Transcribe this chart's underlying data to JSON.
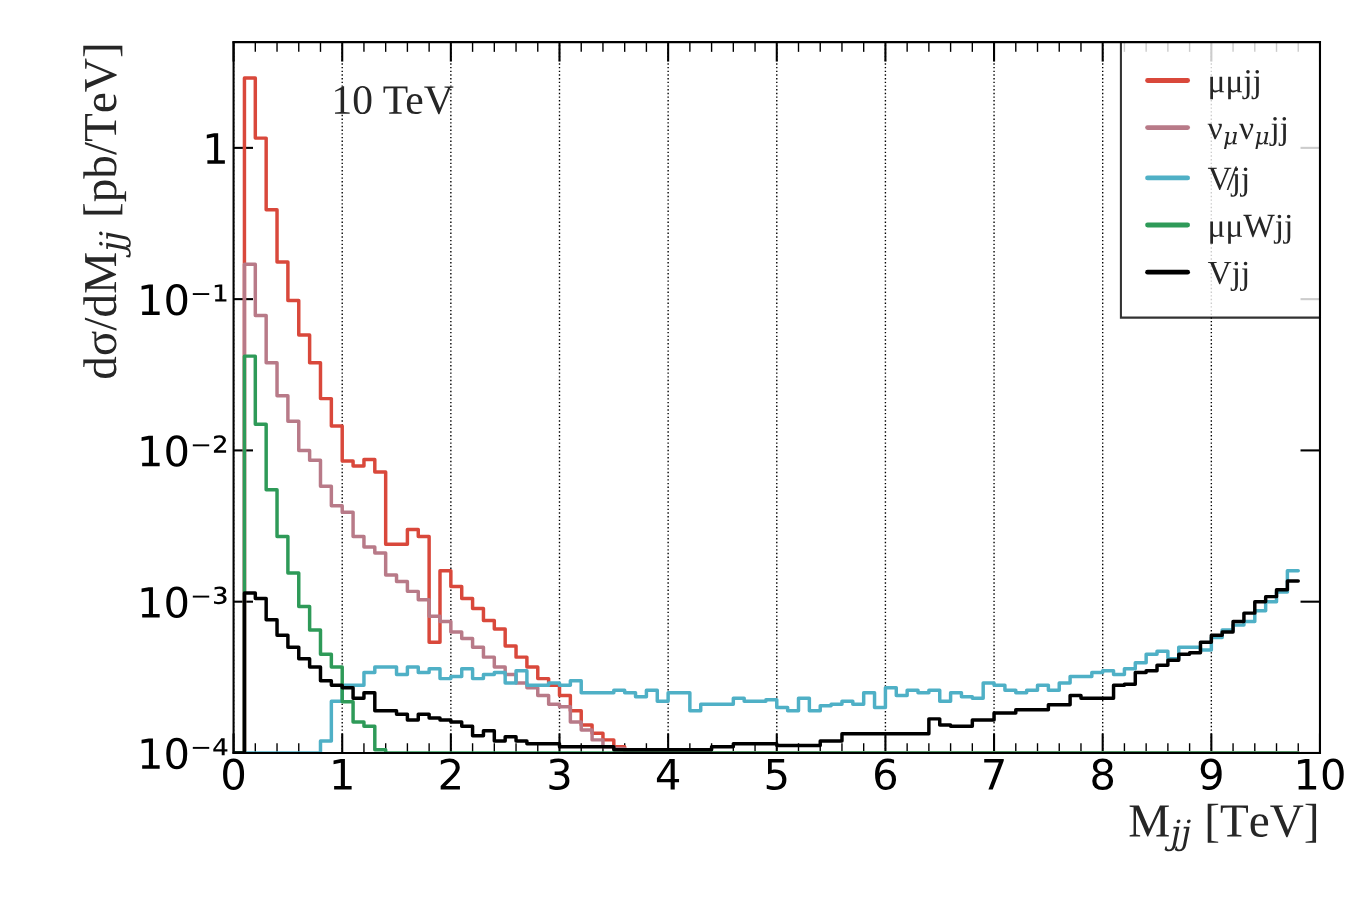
{
  "chart_data": {
    "type": "histogram",
    "xlabel": "M$_{jj}$ [TeV]",
    "ylabel": "dσ/dM$_{jj}$ [pb/TeV]",
    "annotations": [
      "10 TeV"
    ],
    "bins": [
      0.0,
      0.1,
      0.2,
      0.3,
      0.4,
      0.5,
      0.6,
      0.7,
      0.8,
      0.9,
      1.0,
      1.1,
      1.2,
      1.3,
      1.4,
      1.5,
      1.6,
      1.7,
      1.8,
      1.9,
      2.0,
      2.1,
      2.2,
      2.3,
      2.4,
      2.5,
      2.6,
      2.7,
      2.8,
      2.9,
      3.0,
      3.1,
      3.2,
      3.3,
      3.4,
      3.5,
      3.6,
      3.7,
      3.8,
      3.9,
      4.0,
      4.1,
      4.2,
      4.3,
      4.4,
      4.5,
      4.6,
      4.7,
      4.8,
      4.9,
      5.0,
      5.1,
      5.2,
      5.3,
      5.4,
      5.5,
      5.6,
      5.7,
      5.8,
      5.9,
      6.0,
      6.1,
      6.2,
      6.3,
      6.4,
      6.5,
      6.6,
      6.7,
      6.8,
      6.9,
      7.0,
      7.1,
      7.2,
      7.3,
      7.4,
      7.5,
      7.6,
      7.7,
      7.8,
      7.9,
      8.0,
      8.1,
      8.2,
      8.3,
      8.4,
      8.5,
      8.6,
      8.7,
      8.8,
      8.9,
      9.0,
      9.1,
      9.2,
      9.3,
      9.4,
      9.5,
      9.6,
      9.7,
      9.8
    ],
    "series": [
      {
        "name": "μμjj",
        "color": "#d9483b",
        "values": [
          0.0001,
          2.9,
          1.16,
          0.39,
          0.176,
          0.098,
          0.058,
          0.038,
          0.022,
          0.0145,
          0.0085,
          0.0079,
          0.0087,
          0.0072,
          0.0024,
          0.0024,
          0.003,
          0.0027,
          0.00054,
          0.0016,
          0.00126,
          0.00105,
          0.0009,
          0.00075,
          0.00066,
          0.00051,
          0.00043,
          0.00037,
          0.00031,
          0.00028,
          0.00024,
          0.00019,
          0.000153,
          0.000135,
          0.000122,
          0.00011,
          0.000105,
          0.000105,
          0.000103,
          0.0001,
          0.0001,
          0.0001,
          0.0001,
          0.0001,
          0.0001,
          0.0001,
          0.0001,
          0.0001,
          0.0001,
          0.0001,
          0.0001,
          0.0001,
          0.0001,
          0.0001,
          0.0001,
          0.0001,
          0.0001,
          0.0001,
          0.0001,
          0.0001,
          0.0001,
          0.0001,
          0.0001,
          0.0001,
          0.0001,
          0.0001,
          0.0001,
          0.0001,
          0.0001,
          0.0001,
          0.0001,
          0.0001,
          0.0001,
          0.0001,
          0.0001,
          0.0001,
          0.0001,
          0.0001,
          0.0001,
          0.0001,
          0.0001,
          0.0001,
          0.0001,
          0.0001,
          0.0001,
          0.0001,
          0.0001,
          0.0001,
          0.0001,
          0.0001,
          0.0001,
          0.0001,
          0.0001,
          0.0001,
          0.0001,
          0.0001,
          0.0001,
          0.0001
        ]
      },
      {
        "name": "ν$_{μ}$ν$_{μ}$jj",
        "color": "#b87a88",
        "values": [
          0.0001,
          0.17,
          0.078,
          0.038,
          0.023,
          0.0156,
          0.01,
          0.0086,
          0.0058,
          0.0043,
          0.0039,
          0.0027,
          0.0023,
          0.0021,
          0.0015,
          0.00136,
          0.00117,
          0.00103,
          0.0008,
          0.00074,
          0.00063,
          0.00057,
          0.0005,
          0.00043,
          0.00037,
          0.00033,
          0.00029,
          0.00027,
          0.00024,
          0.00021,
          0.000202,
          0.00016,
          0.000142,
          0.000122,
          0.00011,
          0.000107,
          0.000103,
          0.0001,
          0.0001,
          0.0001,
          0.0001,
          0.0001,
          0.0001,
          0.0001,
          0.0001,
          0.0001,
          0.0001,
          0.0001,
          0.0001,
          0.0001,
          0.0001,
          0.0001,
          0.0001,
          0.0001,
          0.0001,
          0.0001,
          0.0001,
          0.0001,
          0.0001,
          0.0001,
          0.0001,
          0.0001,
          0.0001,
          0.0001,
          0.0001,
          0.0001,
          0.0001,
          0.0001,
          0.0001,
          0.0001,
          0.0001,
          0.0001,
          0.0001,
          0.0001,
          0.0001,
          0.0001,
          0.0001,
          0.0001,
          0.0001,
          0.0001,
          0.0001,
          0.0001,
          0.0001,
          0.0001,
          0.0001,
          0.0001,
          0.0001,
          0.0001,
          0.0001,
          0.0001,
          0.0001,
          0.0001,
          0.0001,
          0.0001,
          0.0001,
          0.0001,
          0.0001,
          0.0001
        ]
      },
      {
        "name": "V̸jj",
        "color": "#4fb0c6",
        "values": [
          0.0001,
          0.0001,
          0.0001,
          0.0001,
          0.0001,
          0.0001,
          0.0001,
          0.0001,
          0.00012,
          0.00022,
          0.00028,
          0.00028,
          0.00034,
          0.00037,
          0.00037,
          0.00033,
          0.00037,
          0.00034,
          0.00036,
          0.00031,
          0.00032,
          0.00036,
          0.00031,
          0.00033,
          0.00034,
          0.00029,
          0.00035,
          0.00028,
          0.00028,
          0.00029,
          0.00028,
          0.0003,
          0.00025,
          0.00025,
          0.00025,
          0.00026,
          0.00025,
          0.000235,
          0.00026,
          0.00022,
          0.00025,
          0.00025,
          0.00019,
          0.00021,
          0.00021,
          0.00021,
          0.00023,
          0.00022,
          0.00022,
          0.000225,
          0.0002,
          0.00019,
          0.00023,
          0.00019,
          0.000205,
          0.00021,
          0.00022,
          0.00021,
          0.00025,
          0.0002,
          0.00027,
          0.00024,
          0.00026,
          0.00025,
          0.00026,
          0.00022,
          0.00025,
          0.000235,
          0.00023,
          0.00029,
          0.00028,
          0.00026,
          0.00025,
          0.00026,
          0.00028,
          0.00026,
          0.00029,
          0.00032,
          0.00032,
          0.00034,
          0.00035,
          0.00033,
          0.00036,
          0.000395,
          0.00045,
          0.00047,
          0.00042,
          0.0005,
          0.0005,
          0.00048,
          0.00058,
          0.00065,
          0.0007,
          0.00074,
          0.00087,
          0.001,
          0.00116,
          0.0016
        ]
      },
      {
        "name": "μμWjj",
        "color": "#2e9a58",
        "values": [
          0.0001,
          0.042,
          0.0149,
          0.0055,
          0.0027,
          0.00155,
          0.00093,
          0.00065,
          0.00045,
          0.00037,
          0.000218,
          0.00016,
          0.00015,
          0.000105,
          0.0001,
          0.0001,
          0.0001,
          0.0001,
          0.0001,
          0.0001,
          0.0001,
          0.0001,
          0.0001,
          0.0001,
          0.0001,
          0.0001,
          0.0001,
          0.0001,
          0.0001,
          0.0001,
          0.0001,
          0.0001,
          0.0001,
          0.0001,
          0.0001,
          0.0001,
          0.0001,
          0.0001,
          0.0001,
          0.0001,
          0.0001,
          0.0001,
          0.0001,
          0.0001,
          0.0001,
          0.0001,
          0.0001,
          0.0001,
          0.0001,
          0.0001,
          0.0001,
          0.0001,
          0.0001,
          0.0001,
          0.0001,
          0.0001,
          0.0001,
          0.0001,
          0.0001,
          0.0001,
          0.0001,
          0.0001,
          0.0001,
          0.0001,
          0.0001,
          0.0001,
          0.0001,
          0.0001,
          0.0001,
          0.0001,
          0.0001,
          0.0001,
          0.0001,
          0.0001,
          0.0001,
          0.0001,
          0.0001,
          0.0001,
          0.0001,
          0.0001,
          0.0001,
          0.0001,
          0.0001,
          0.0001,
          0.0001,
          0.0001,
          0.0001,
          0.0001,
          0.0001,
          0.0001,
          0.0001,
          0.0001,
          0.0001,
          0.0001,
          0.0001,
          0.0001,
          0.0001,
          0.0001
        ]
      },
      {
        "name": "Vjj",
        "color": "#000000",
        "values": [
          0.0001,
          0.00114,
          0.00105,
          0.00076,
          0.0006,
          0.0005,
          0.00042,
          0.00037,
          0.0003,
          0.00028,
          0.00027,
          0.00023,
          0.00025,
          0.00019,
          0.00019,
          0.00018,
          0.000165,
          0.00018,
          0.00017,
          0.000165,
          0.00016,
          0.00015,
          0.00013,
          0.00014,
          0.00012,
          0.000128,
          0.00012,
          0.000115,
          0.000115,
          0.000115,
          0.00011,
          0.00011,
          0.00011,
          0.00011,
          0.00011,
          0.000105,
          0.000105,
          0.000105,
          0.000105,
          0.000105,
          0.000105,
          0.000105,
          0.000105,
          0.000105,
          0.00011,
          0.00011,
          0.000115,
          0.000115,
          0.000115,
          0.000115,
          0.000112,
          0.000112,
          0.000112,
          0.000112,
          0.00012,
          0.00012,
          0.000134,
          0.000134,
          0.000134,
          0.000134,
          0.000134,
          0.000134,
          0.000134,
          0.000134,
          0.000168,
          0.000153,
          0.00015,
          0.00015,
          0.000165,
          0.000165,
          0.000184,
          0.000184,
          0.000193,
          0.000193,
          0.000193,
          0.000208,
          0.000208,
          0.00024,
          0.00023,
          0.00023,
          0.00023,
          0.00028,
          0.000285,
          0.00034,
          0.00035,
          0.00038,
          0.00041,
          0.00045,
          0.00046,
          0.00054,
          0.0006,
          0.00063,
          0.00074,
          0.00084,
          0.001,
          0.00108,
          0.0012,
          0.00137
        ]
      }
    ],
    "log": "y",
    "xlim": [
      0,
      10
    ],
    "xticks": [
      0,
      1,
      2,
      3,
      4,
      5,
      6,
      7,
      8,
      9,
      10
    ],
    "ylim": [
      0.0001,
      5
    ],
    "yticks": [
      {
        "value": 0.0001,
        "label": "10⁻⁴"
      },
      {
        "value": 0.001,
        "label": "10⁻³"
      },
      {
        "value": 0.01,
        "label": "10⁻²"
      },
      {
        "value": 0.1,
        "label": "10⁻¹"
      },
      1
    ],
    "grid": "x",
    "legend": "top right"
  }
}
